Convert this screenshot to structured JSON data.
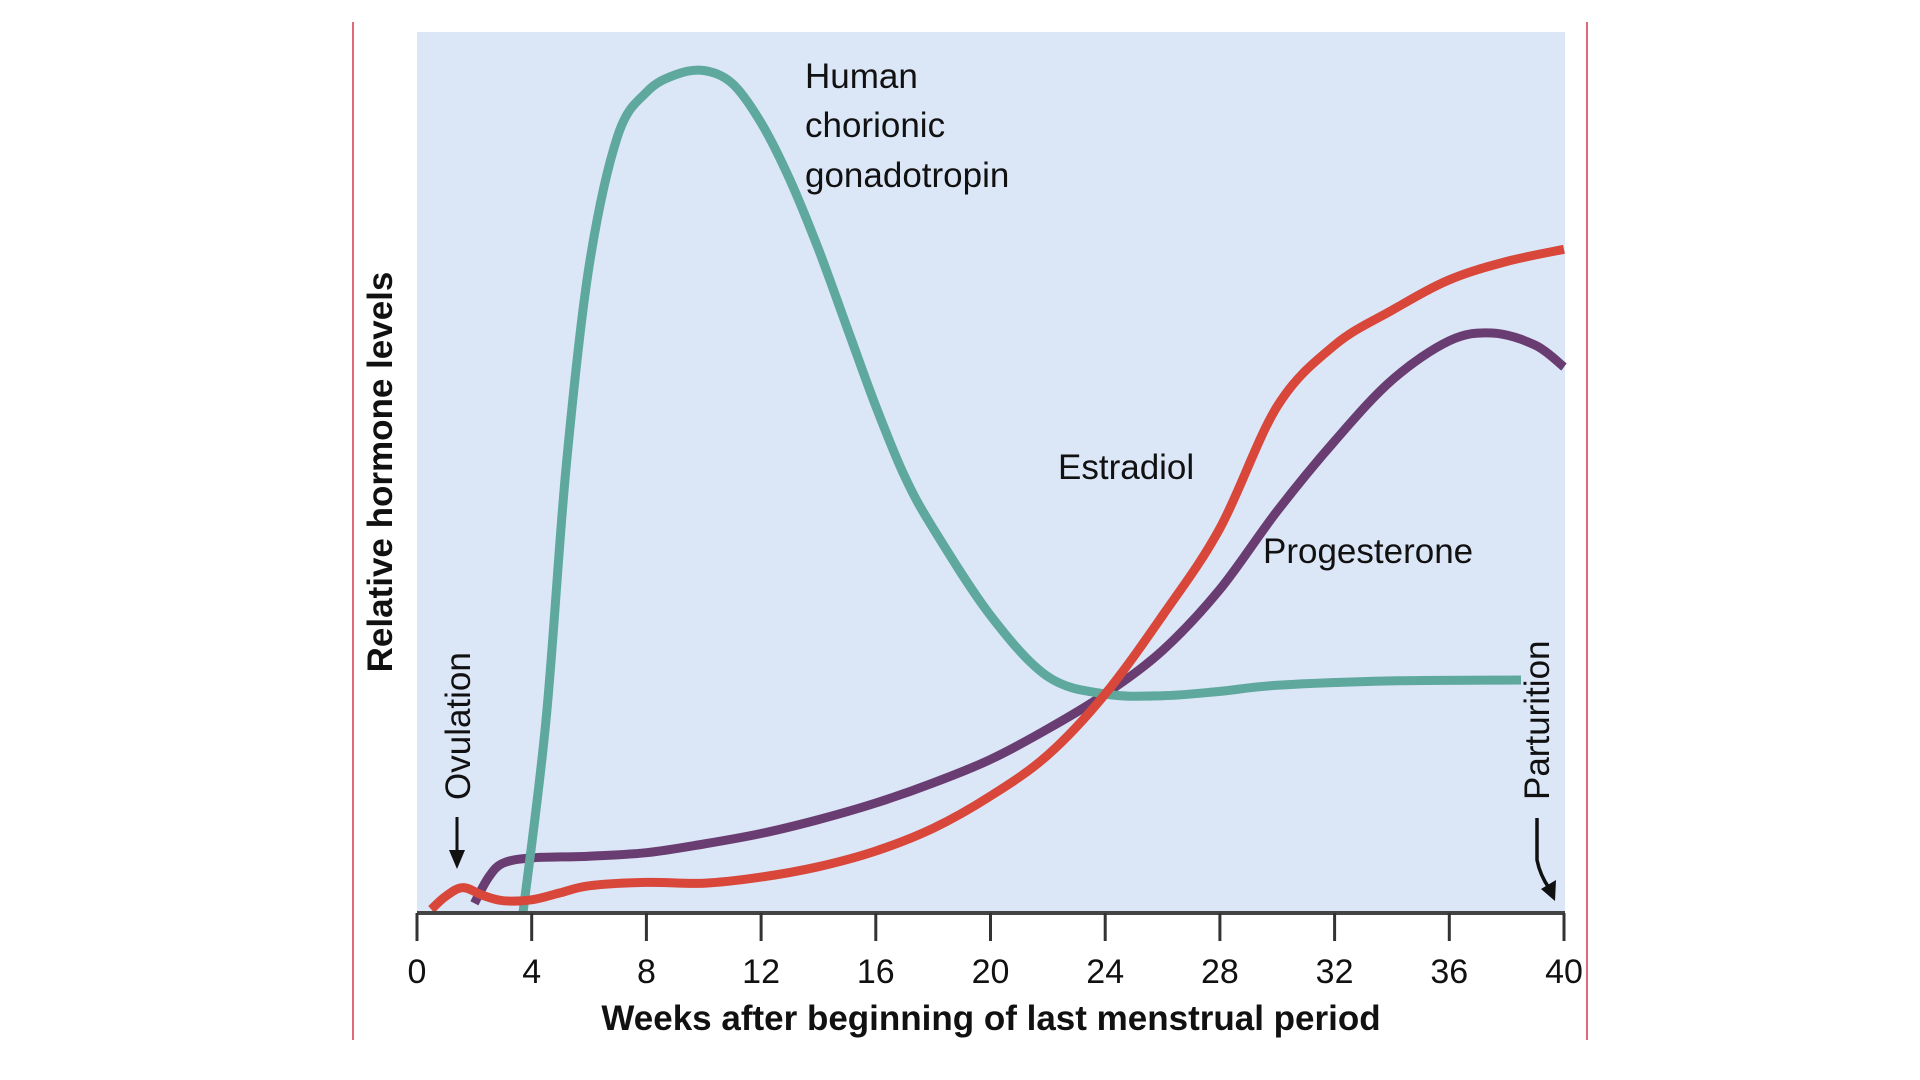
{
  "chart_data": {
    "type": "line",
    "title": "",
    "xlabel": "Weeks after beginning of last menstrual period",
    "ylabel": "Relative hormone levels",
    "xlim": [
      0,
      40
    ],
    "ylim": [
      0,
      100
    ],
    "xticks": [
      0,
      4,
      8,
      12,
      16,
      20,
      24,
      28,
      32,
      36,
      40
    ],
    "grid": false,
    "legend": "inline labels",
    "background_color": "#dbe6f7",
    "series": [
      {
        "name": "Human chorionic gonadotropin",
        "label_lines": [
          "Human",
          "chorionic",
          "gonadotropin"
        ],
        "color": "#5ea89e",
        "x": [
          3.7,
          4.5,
          5.2,
          6,
          7,
          8,
          9,
          10,
          11,
          12,
          13,
          14,
          15,
          16,
          17,
          18,
          20,
          22,
          24,
          26,
          28,
          30,
          34,
          38.5
        ],
        "y": [
          0,
          22,
          51,
          74,
          89,
          94,
          96,
          96.5,
          95,
          90.5,
          84,
          76,
          67,
          58,
          50,
          44,
          34,
          27,
          25,
          24.8,
          25.3,
          26,
          26.5,
          26.6
        ]
      },
      {
        "name": "Estradiol",
        "color": "#d9473a",
        "x": [
          0.5,
          1.0,
          1.6,
          2.3,
          3.0,
          4.0,
          5.0,
          6.0,
          8.0,
          10.0,
          12.0,
          14.0,
          16.0,
          18.0,
          20.0,
          22.0,
          24.0,
          26.0,
          28.0,
          30.0,
          32.0,
          34.0,
          36.0,
          38.0,
          40.0
        ],
        "y": [
          0.3,
          1.8,
          2.8,
          1.9,
          1.3,
          1.4,
          2.2,
          3.0,
          3.4,
          3.3,
          4.0,
          5.2,
          7.0,
          9.6,
          13.3,
          18.0,
          25.0,
          34.0,
          44.0,
          58.0,
          65.0,
          69.0,
          72.5,
          74.6,
          76.0
        ]
      },
      {
        "name": "Progesterone",
        "color": "#6a3d72",
        "x": [
          2.0,
          2.5,
          3.0,
          4.0,
          6.0,
          8.0,
          10.0,
          12.0,
          14.0,
          16.0,
          18.0,
          20.0,
          22.0,
          24.0,
          26.0,
          28.0,
          30.0,
          32.0,
          34.0,
          36.0,
          37.5,
          39.0,
          40.0
        ],
        "y": [
          1.0,
          4.0,
          5.6,
          6.2,
          6.4,
          6.8,
          7.8,
          9.0,
          10.6,
          12.5,
          14.8,
          17.5,
          21.0,
          25.0,
          30.0,
          37.0,
          46.0,
          54.0,
          61.0,
          65.5,
          66.4,
          65.0,
          62.5
        ]
      }
    ],
    "annotations": [
      {
        "text": "Ovulation",
        "x": 1.5,
        "arrow": "down"
      },
      {
        "text": "Parturition",
        "x": 39.5,
        "arrow": "down"
      }
    ]
  }
}
